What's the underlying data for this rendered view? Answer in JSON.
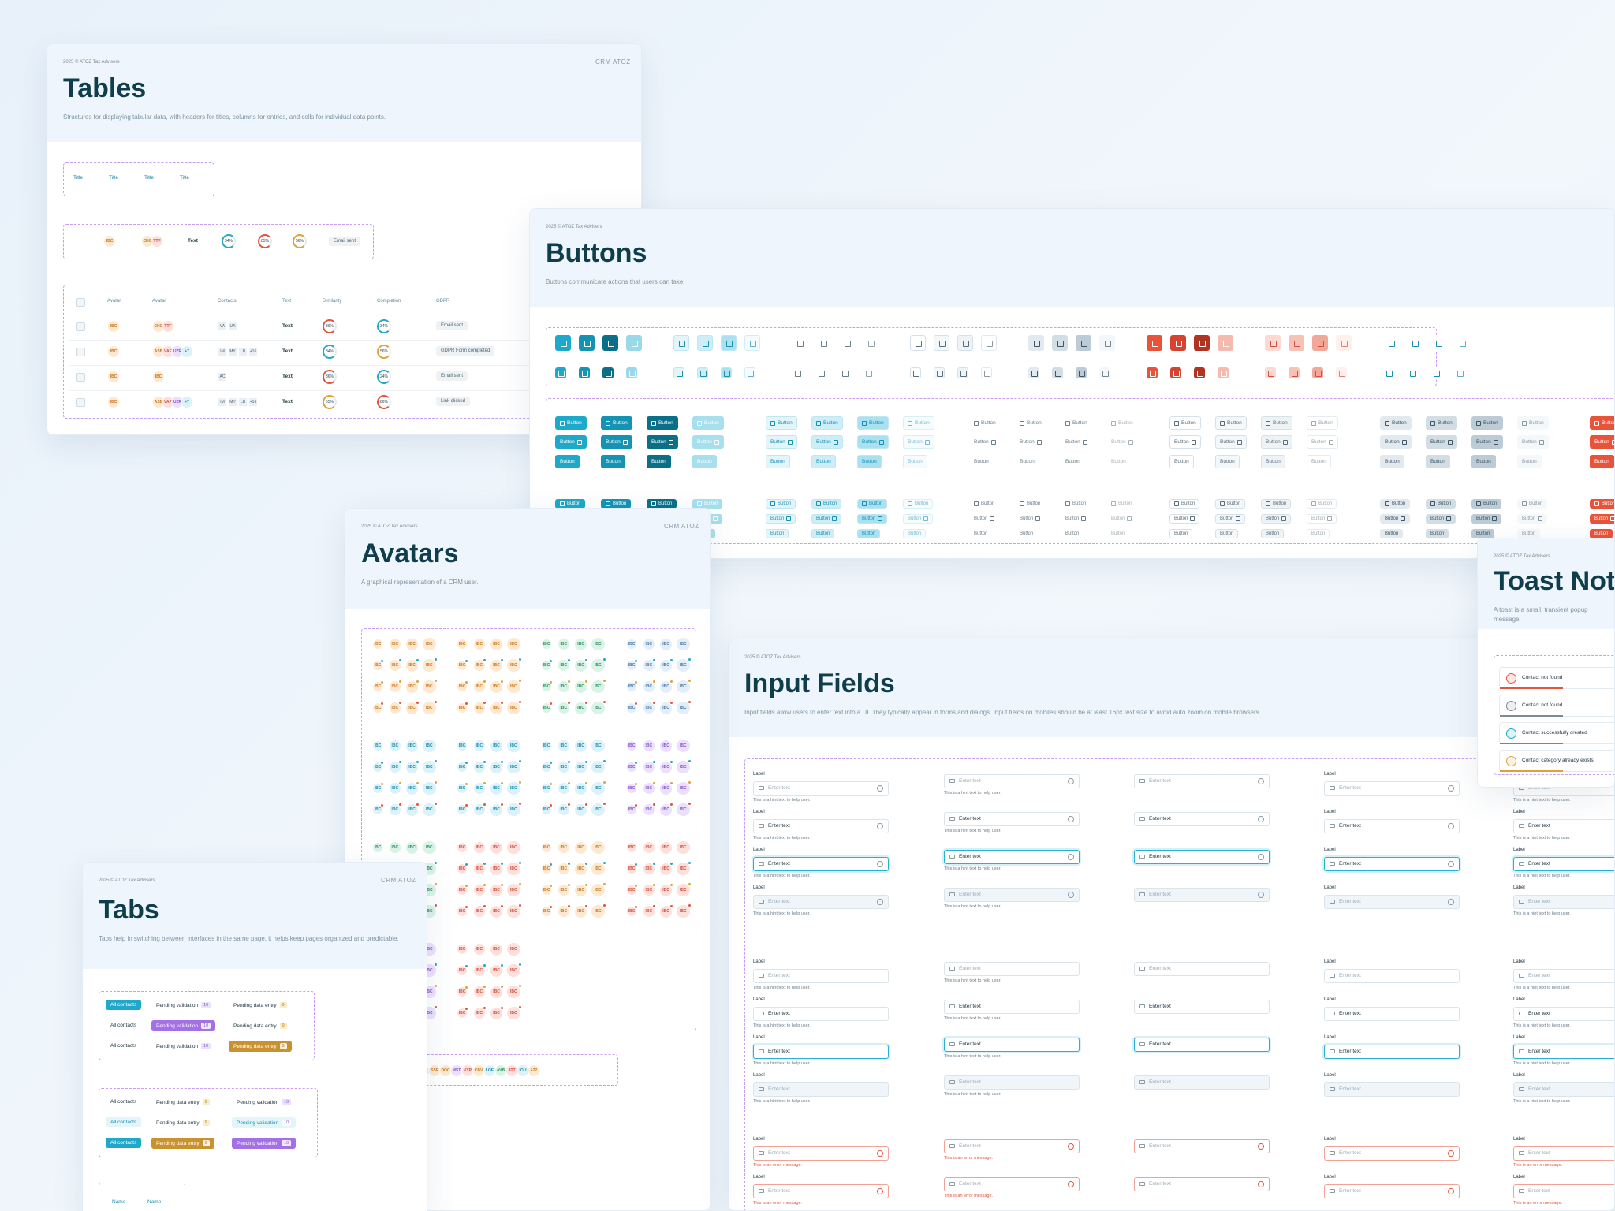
{
  "tables": {
    "meta": "2025 © ATOZ Tax Advisers",
    "logo": "CRM ATOZ",
    "title": "Tables",
    "description": "Structures for displaying tabular data, with headers for titles, columns for entries, and cells for individual data points.",
    "header_cells": [
      "Title",
      "Title",
      "Title",
      "Title"
    ],
    "sample_row": [
      "IBC",
      "CHG",
      "TTF",
      "Text",
      "34%",
      "85%",
      "56%",
      "Email sent"
    ],
    "columns": [
      "Avatar",
      "Avatar",
      "Contacts",
      "Text",
      "Similarity",
      "Completion",
      "GDPR"
    ],
    "rows": [
      [
        "IBC",
        [
          "CHG",
          "TTF"
        ],
        [
          "VA",
          "UA"
        ],
        "Text",
        "86%",
        "34%",
        "Email sent"
      ],
      [
        "IBC",
        [
          "ASB",
          "VAP",
          "UZR",
          "+7"
        ],
        [
          "IM",
          "MY",
          "LB",
          "+16"
        ],
        "Text",
        "34%",
        "56%",
        "GDPR Form completed"
      ],
      [
        "IBC",
        [
          "IBC"
        ],
        [
          "AC"
        ],
        "Text",
        "86%",
        "24%",
        "Email sent"
      ],
      [
        "IBC",
        [
          "ASB",
          "VAP",
          "UZR",
          "+7"
        ],
        [
          "IM",
          "MY",
          "LB",
          "+16"
        ],
        "Text",
        "55%",
        "86%",
        "Link clicked"
      ]
    ]
  },
  "buttons": {
    "meta": "2025 © ATOZ Tax Advisers",
    "title": "Buttons",
    "description": "Buttons communicate actions that users can take.",
    "label": "Button"
  },
  "avatars": {
    "meta": "2025 © ATOZ Tax Advisers",
    "logo": "CRM ATOZ",
    "title": "Avatars",
    "description": "A graphical representation of a CRM user.",
    "initials": "IBC",
    "group_row": [
      "ASB",
      "VAP",
      "UZR",
      "+7"
    ],
    "long_row": [
      "TJ",
      "SSF",
      "DOC",
      "MST",
      "VYP",
      "CBV",
      "LOE",
      "AVB",
      "ATT",
      "IOU",
      "+22"
    ],
    "overflow": [
      "+",
      "+7"
    ]
  },
  "tabs": {
    "meta": "2025 © ATOZ Tax Advisers",
    "logo": "CRM ATOZ",
    "title": "Tabs",
    "description": "Tabs help in switching between interfaces in the same page, it helps keep pages organized and predictable.",
    "all": "All contacts",
    "pending_validation": "Pending validation",
    "pending_entry": "Pending data entry",
    "validation_count": "10",
    "entry_count": "9",
    "name": "Name"
  },
  "inputs": {
    "meta": "2025 © ATOZ Tax Advisers",
    "title": "Input Fields",
    "description": "Input fields allow users to enter text into a UI. They typically appear in forms and dialogs. Input fields on mobiles should be at least 16px text size to avoid auto zoom on mobile browsers.",
    "label": "Label",
    "placeholder": "Enter text",
    "hint": "This is a hint text to help user.",
    "error": "This is an error message."
  },
  "toast": {
    "meta": "2025 © ATOZ Tax Advisers",
    "title": "Toast Notifications",
    "description": "A toast is a small, transient popup message.",
    "messages": [
      "Contact not found",
      "Contact not found",
      "Contact successfully created",
      "Contact category already exists"
    ]
  }
}
